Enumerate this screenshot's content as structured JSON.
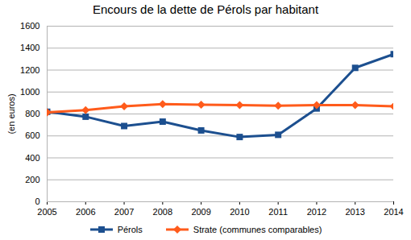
{
  "chart_data": {
    "type": "line",
    "title": "Encours de la dette de Pérols par habitant",
    "y_label": "(en euros)",
    "x": [
      2005,
      2006,
      2007,
      2008,
      2009,
      2010,
      2011,
      2012,
      2013,
      2014
    ],
    "xlim": [
      2005,
      2014
    ],
    "xticks": [
      2005,
      2006,
      2007,
      2008,
      2009,
      2010,
      2011,
      2012,
      2013,
      2014
    ],
    "ylim": [
      0,
      1600
    ],
    "yticks": [
      0,
      200,
      400,
      600,
      800,
      1000,
      1200,
      1400,
      1600
    ],
    "grid": true,
    "legend": "bottom",
    "series": [
      {
        "name": "Pérols",
        "color": "#1c4f8f",
        "marker": "square",
        "values": [
          820,
          775,
          690,
          730,
          650,
          590,
          610,
          850,
          1220,
          1345
        ]
      },
      {
        "name": "Strate (communes comparables)",
        "color": "#ff5b1b",
        "marker": "diamond",
        "values": [
          815,
          835,
          870,
          890,
          885,
          880,
          875,
          880,
          880,
          870
        ]
      }
    ]
  }
}
